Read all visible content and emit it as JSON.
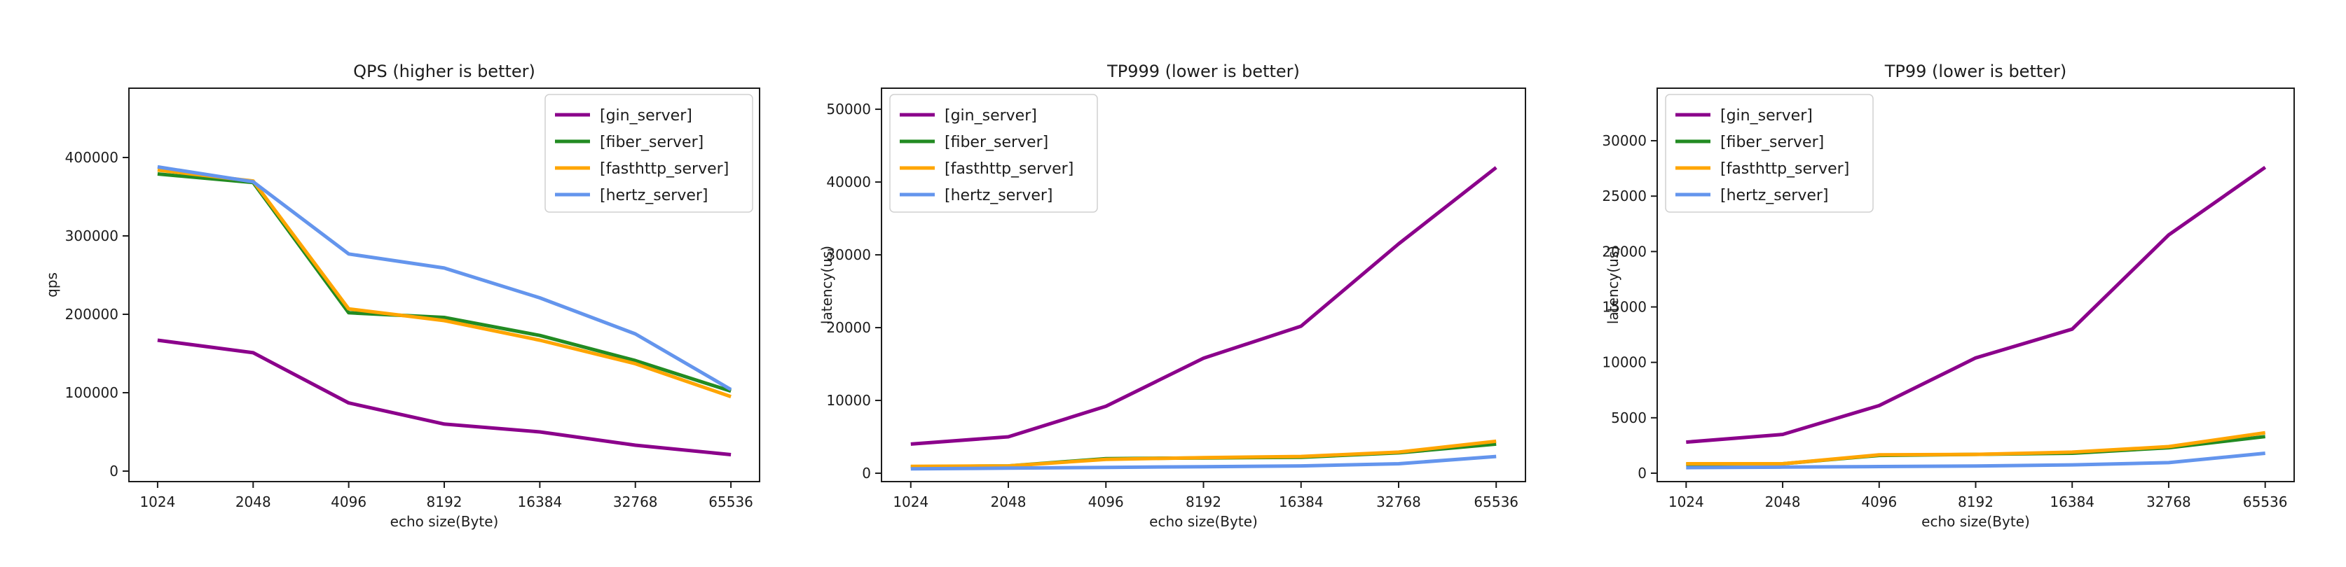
{
  "style": {
    "background": "#ffffff",
    "axis_color": "#1c1c1c",
    "text_color": "#1c1c1c",
    "legend_border_color": "#d0d0d0",
    "legend_fill": "#ffffff"
  },
  "chart_data": [
    {
      "type": "line",
      "id": "qps",
      "title": "QPS (higher is better)",
      "xlabel": "echo size(Byte)",
      "ylabel": "qps",
      "categories": [
        1024,
        2048,
        4096,
        8192,
        16384,
        32768,
        65536
      ],
      "x_scale": "log2-equal-spacing",
      "yticks": [
        0,
        100000,
        200000,
        300000,
        400000
      ],
      "ylim": [
        -13400,
        488400
      ],
      "grid": false,
      "legend_position": "upper-right",
      "series": [
        {
          "name": "[gin_server]",
          "color": "#8b008b",
          "values": [
            167000,
            151000,
            87000,
            60000,
            50000,
            33000,
            21000
          ]
        },
        {
          "name": "[fiber_server]",
          "color": "#228b22",
          "values": [
            379000,
            368000,
            202000,
            196000,
            173000,
            141000,
            102000
          ]
        },
        {
          "name": "[fasthttp_server]",
          "color": "#ffa500",
          "values": [
            384000,
            370000,
            207000,
            192000,
            167000,
            137000,
            95000
          ]
        },
        {
          "name": "[hertz_server]",
          "color": "#6495ed",
          "values": [
            388000,
            369000,
            277000,
            259000,
            221000,
            175000,
            104000
          ]
        }
      ]
    },
    {
      "type": "line",
      "id": "tp999",
      "title": "TP999 (lower is better)",
      "xlabel": "echo size(Byte)",
      "ylabel": "latency(us)",
      "categories": [
        1024,
        2048,
        4096,
        8192,
        16384,
        32768,
        65536
      ],
      "x_scale": "log2-equal-spacing",
      "yticks": [
        0,
        10000,
        20000,
        30000,
        40000,
        50000
      ],
      "ylim": [
        -1150,
        52890
      ],
      "grid": false,
      "legend_position": "upper-left",
      "series": [
        {
          "name": "[gin_server]",
          "color": "#8b008b",
          "values": [
            4000,
            5000,
            9200,
            15800,
            20200,
            31500,
            42000
          ]
        },
        {
          "name": "[fiber_server]",
          "color": "#228b22",
          "values": [
            900,
            1000,
            2000,
            2100,
            2200,
            2800,
            4000
          ]
        },
        {
          "name": "[fasthttp_server]",
          "color": "#ffa500",
          "values": [
            950,
            1000,
            1900,
            2150,
            2300,
            2900,
            4400
          ]
        },
        {
          "name": "[hertz_server]",
          "color": "#6495ed",
          "values": [
            600,
            700,
            800,
            900,
            1000,
            1300,
            2300
          ]
        }
      ]
    },
    {
      "type": "line",
      "id": "tp99",
      "title": "TP99 (lower is better)",
      "xlabel": "echo size(Byte)",
      "ylabel": "latency(us)",
      "categories": [
        1024,
        2048,
        4096,
        8192,
        16384,
        32768,
        65536
      ],
      "x_scale": "log2-equal-spacing",
      "yticks": [
        0,
        5000,
        10000,
        15000,
        20000,
        25000,
        30000
      ],
      "ylim": [
        -760,
        34740
      ],
      "grid": false,
      "legend_position": "upper-left",
      "series": [
        {
          "name": "[gin_server]",
          "color": "#8b008b",
          "values": [
            2800,
            3500,
            6100,
            10400,
            13000,
            21500,
            27600
          ]
        },
        {
          "name": "[fiber_server]",
          "color": "#228b22",
          "values": [
            800,
            850,
            1600,
            1700,
            1800,
            2300,
            3300
          ]
        },
        {
          "name": "[fasthttp_server]",
          "color": "#ffa500",
          "values": [
            850,
            850,
            1650,
            1700,
            1900,
            2400,
            3650
          ]
        },
        {
          "name": "[hertz_server]",
          "color": "#6495ed",
          "values": [
            500,
            550,
            600,
            650,
            750,
            950,
            1800
          ]
        }
      ]
    }
  ]
}
